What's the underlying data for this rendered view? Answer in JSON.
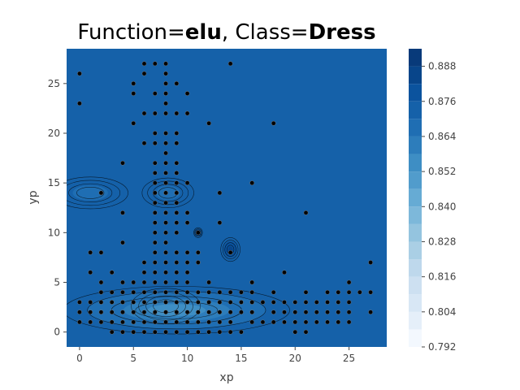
{
  "chart_data": {
    "type": "heatmap",
    "subtype": "filled-contour-with-scatter",
    "title": {
      "prefix": "Function=",
      "function": "elu",
      "separator": ", Class=",
      "class_name": "Dress"
    },
    "xlabel": "xp",
    "ylabel": "yp",
    "xlim": [
      -1.2,
      28.5
    ],
    "ylim": [
      28.5,
      -1.5
    ],
    "x_ticks": [
      0,
      5,
      10,
      15,
      20,
      25
    ],
    "y_ticks": [
      0,
      5,
      10,
      15,
      20,
      25
    ],
    "colorbar": {
      "min": 0.792,
      "max": 0.894,
      "levels": [
        0.792,
        0.798,
        0.804,
        0.81,
        0.816,
        0.822,
        0.828,
        0.834,
        0.84,
        0.846,
        0.852,
        0.858,
        0.864,
        0.87,
        0.876,
        0.882,
        0.888,
        0.894
      ],
      "tick_values": [
        0.792,
        0.804,
        0.816,
        0.828,
        0.84,
        0.852,
        0.864,
        0.876,
        0.888
      ],
      "tick_labels": [
        "0.792",
        "0.804",
        "0.816",
        "0.828",
        "0.840",
        "0.852",
        "0.864",
        "0.876",
        "0.888"
      ],
      "colors": [
        "#f3f8fe",
        "#e5eff9",
        "#d8e7f5",
        "#cde0f1",
        "#bed8ec",
        "#aacfe5",
        "#94c4df",
        "#7db8da",
        "#66abd4",
        "#519ccc",
        "#3e8ec4",
        "#2d7dbb",
        "#1f6eb3",
        "#1561a9",
        "#0b539e",
        "#08458a",
        "#083a7a"
      ]
    },
    "background_value": 0.873,
    "features": [
      {
        "kind": "basin",
        "label": "upper-left low region",
        "cx": 8.0,
        "cy": 2.6,
        "rx": 3.2,
        "ry": 1.8,
        "value": 0.812
      },
      {
        "kind": "basin",
        "label": "upper band",
        "cx": 9.0,
        "cy": 2.2,
        "rx": 10.5,
        "ry": 2.4,
        "value": 0.855
      },
      {
        "kind": "basin",
        "label": "left lobe",
        "cx": 1.0,
        "cy": 14.0,
        "rx": 3.5,
        "ry": 1.6,
        "value": 0.868
      },
      {
        "kind": "basin",
        "label": "mid lobe",
        "cx": 8.2,
        "cy": 14.0,
        "rx": 2.4,
        "ry": 1.5,
        "value": 0.868
      },
      {
        "kind": "peak",
        "label": "dark spot",
        "cx": 14.0,
        "cy": 8.3,
        "rx": 0.9,
        "ry": 1.2,
        "value": 0.884
      },
      {
        "kind": "peak",
        "label": "small spot",
        "cx": 11.0,
        "cy": 10.0,
        "rx": 0.4,
        "ry": 0.5,
        "value": 0.884
      }
    ],
    "points": [
      [
        3,
        0
      ],
      [
        4,
        0
      ],
      [
        5,
        0
      ],
      [
        6,
        0
      ],
      [
        7,
        0
      ],
      [
        8,
        0
      ],
      [
        9,
        0
      ],
      [
        10,
        0
      ],
      [
        11,
        0
      ],
      [
        12,
        0
      ],
      [
        13,
        0
      ],
      [
        14,
        0
      ],
      [
        15,
        0
      ],
      [
        20,
        0
      ],
      [
        21,
        0
      ],
      [
        0,
        1
      ],
      [
        1,
        1
      ],
      [
        2,
        1
      ],
      [
        3,
        1
      ],
      [
        4,
        1
      ],
      [
        5,
        1
      ],
      [
        6,
        1
      ],
      [
        7,
        1
      ],
      [
        8,
        1
      ],
      [
        9,
        1
      ],
      [
        10,
        1
      ],
      [
        11,
        1
      ],
      [
        12,
        1
      ],
      [
        13,
        1
      ],
      [
        14,
        1
      ],
      [
        16,
        1
      ],
      [
        17,
        1
      ],
      [
        18,
        1
      ],
      [
        19,
        1
      ],
      [
        20,
        1
      ],
      [
        21,
        1
      ],
      [
        22,
        1
      ],
      [
        23,
        1
      ],
      [
        24,
        1
      ],
      [
        25,
        1
      ],
      [
        0,
        2
      ],
      [
        1,
        2
      ],
      [
        2,
        2
      ],
      [
        3,
        2
      ],
      [
        4,
        2
      ],
      [
        5,
        2
      ],
      [
        6,
        2
      ],
      [
        7,
        2
      ],
      [
        8,
        2
      ],
      [
        9,
        2
      ],
      [
        10,
        2
      ],
      [
        11,
        2
      ],
      [
        12,
        2
      ],
      [
        13,
        2
      ],
      [
        14,
        2
      ],
      [
        15,
        2
      ],
      [
        16,
        2
      ],
      [
        18,
        2
      ],
      [
        19,
        2
      ],
      [
        20,
        2
      ],
      [
        21,
        2
      ],
      [
        22,
        2
      ],
      [
        23,
        2
      ],
      [
        24,
        2
      ],
      [
        25,
        2
      ],
      [
        27,
        2
      ],
      [
        0,
        3
      ],
      [
        1,
        3
      ],
      [
        2,
        3
      ],
      [
        3,
        3
      ],
      [
        4,
        3
      ],
      [
        5,
        3
      ],
      [
        6,
        3
      ],
      [
        7,
        3
      ],
      [
        8,
        3
      ],
      [
        9,
        3
      ],
      [
        10,
        3
      ],
      [
        11,
        3
      ],
      [
        12,
        3
      ],
      [
        13,
        3
      ],
      [
        14,
        3
      ],
      [
        15,
        3
      ],
      [
        16,
        3
      ],
      [
        17,
        3
      ],
      [
        18,
        3
      ],
      [
        19,
        3
      ],
      [
        20,
        3
      ],
      [
        21,
        3
      ],
      [
        22,
        3
      ],
      [
        23,
        3
      ],
      [
        24,
        3
      ],
      [
        25,
        3
      ],
      [
        2,
        4
      ],
      [
        3,
        4
      ],
      [
        4,
        4
      ],
      [
        5,
        4
      ],
      [
        6,
        4
      ],
      [
        7,
        4
      ],
      [
        8,
        4
      ],
      [
        9,
        4
      ],
      [
        10,
        4
      ],
      [
        11,
        4
      ],
      [
        12,
        4
      ],
      [
        13,
        4
      ],
      [
        14,
        4
      ],
      [
        15,
        4
      ],
      [
        16,
        4
      ],
      [
        18,
        4
      ],
      [
        21,
        4
      ],
      [
        23,
        4
      ],
      [
        24,
        4
      ],
      [
        25,
        4
      ],
      [
        26,
        4
      ],
      [
        27,
        4
      ],
      [
        2,
        5
      ],
      [
        4,
        5
      ],
      [
        5,
        5
      ],
      [
        6,
        5
      ],
      [
        7,
        5
      ],
      [
        8,
        5
      ],
      [
        9,
        5
      ],
      [
        10,
        5
      ],
      [
        12,
        5
      ],
      [
        16,
        5
      ],
      [
        25,
        5
      ],
      [
        1,
        6
      ],
      [
        3,
        6
      ],
      [
        6,
        6
      ],
      [
        7,
        6
      ],
      [
        8,
        6
      ],
      [
        9,
        6
      ],
      [
        10,
        6
      ],
      [
        19,
        6
      ],
      [
        6,
        7
      ],
      [
        7,
        7
      ],
      [
        8,
        7
      ],
      [
        9,
        7
      ],
      [
        10,
        7
      ],
      [
        11,
        7
      ],
      [
        27,
        7
      ],
      [
        1,
        8
      ],
      [
        2,
        8
      ],
      [
        7,
        8
      ],
      [
        8,
        8
      ],
      [
        9,
        8
      ],
      [
        10,
        8
      ],
      [
        11,
        8
      ],
      [
        14,
        8
      ],
      [
        4,
        9
      ],
      [
        7,
        9
      ],
      [
        8,
        9
      ],
      [
        7,
        10
      ],
      [
        8,
        10
      ],
      [
        9,
        10
      ],
      [
        11,
        10
      ],
      [
        7,
        11
      ],
      [
        8,
        11
      ],
      [
        9,
        11
      ],
      [
        10,
        11
      ],
      [
        13,
        11
      ],
      [
        4,
        12
      ],
      [
        7,
        12
      ],
      [
        8,
        12
      ],
      [
        9,
        12
      ],
      [
        10,
        12
      ],
      [
        21,
        12
      ],
      [
        7,
        13
      ],
      [
        8,
        13
      ],
      [
        9,
        13
      ],
      [
        2,
        14
      ],
      [
        7,
        14
      ],
      [
        8,
        14
      ],
      [
        9,
        14
      ],
      [
        13,
        14
      ],
      [
        7,
        15
      ],
      [
        8,
        15
      ],
      [
        9,
        15
      ],
      [
        10,
        15
      ],
      [
        16,
        15
      ],
      [
        7,
        16
      ],
      [
        8,
        16
      ],
      [
        9,
        16
      ],
      [
        4,
        17
      ],
      [
        7,
        17
      ],
      [
        8,
        17
      ],
      [
        9,
        17
      ],
      [
        8,
        18
      ],
      [
        6,
        19
      ],
      [
        7,
        19
      ],
      [
        8,
        19
      ],
      [
        9,
        19
      ],
      [
        7,
        20
      ],
      [
        8,
        20
      ],
      [
        9,
        20
      ],
      [
        5,
        21
      ],
      [
        12,
        21
      ],
      [
        18,
        21
      ],
      [
        6,
        22
      ],
      [
        7,
        22
      ],
      [
        8,
        22
      ],
      [
        9,
        22
      ],
      [
        10,
        22
      ],
      [
        0,
        23
      ],
      [
        8,
        23
      ],
      [
        5,
        24
      ],
      [
        7,
        24
      ],
      [
        8,
        24
      ],
      [
        10,
        24
      ],
      [
        5,
        25
      ],
      [
        8,
        25
      ],
      [
        9,
        25
      ],
      [
        0,
        26
      ],
      [
        6,
        26
      ],
      [
        8,
        26
      ],
      [
        6,
        27
      ],
      [
        7,
        27
      ],
      [
        8,
        27
      ],
      [
        14,
        27
      ]
    ]
  }
}
